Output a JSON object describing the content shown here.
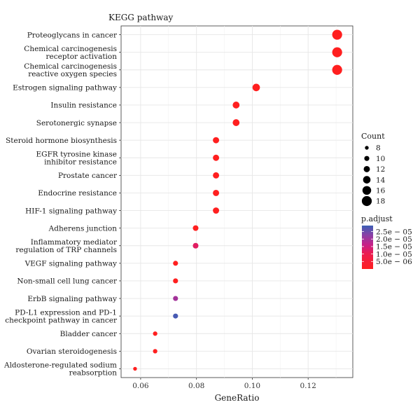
{
  "chart_data": {
    "type": "scatter",
    "title": "KEGG pathway",
    "xlabel": "GeneRatio",
    "ylabel": "",
    "xlim": [
      0.053,
      0.136
    ],
    "xticks": [
      0.06,
      0.08,
      0.1,
      0.12
    ],
    "xtick_labels": [
      "0.06",
      "0.08",
      "0.10",
      "0.12"
    ],
    "grid": true,
    "categories": [
      "Proteoglycans in cancer",
      "Chemical carcinogenesis\nreceptor activation",
      "Chemical carcinogenesis\nreactive oxygen species",
      "Estrogen signaling pathway",
      "Insulin resistance",
      "Serotonergic synapse",
      "Steroid hormone biosynthesis",
      "EGFR tyrosine kinase\ninhibitor resistance",
      "Prostate cancer",
      "Endocrine resistance",
      "HIF-1 signaling pathway",
      "Adherens junction",
      "Inflammatory mediator\nregulation of TRP channels",
      "VEGF signaling pathway",
      "Non-small cell lung cancer",
      "ErbB signaling pathway",
      "PD-L1 expression and PD-1\ncheckpoint pathway in cancer",
      "Bladder cancer",
      "Ovarian steroidogenesis",
      "Aldosterone-regulated sodium\nreabsorption"
    ],
    "gene_ratio": [
      0.1304,
      0.1304,
      0.1304,
      0.1014,
      0.0942,
      0.0942,
      0.087,
      0.087,
      0.087,
      0.087,
      0.087,
      0.0797,
      0.0797,
      0.0725,
      0.0725,
      0.0725,
      0.0725,
      0.0652,
      0.0652,
      0.058
    ],
    "count": [
      18,
      18,
      18,
      14,
      13,
      13,
      12,
      12,
      12,
      12,
      12,
      11,
      11,
      10,
      10,
      10,
      10,
      9,
      9,
      8
    ],
    "p_adjust": [
      1e-09,
      1e-09,
      1e-09,
      1e-09,
      1e-09,
      1e-09,
      1e-09,
      1e-09,
      1e-09,
      1e-09,
      1e-09,
      1e-07,
      1.2e-05,
      1e-09,
      1e-09,
      2e-05,
      2.8e-05,
      1e-09,
      1e-09,
      1e-09
    ],
    "size_legend": {
      "title": "Count",
      "values": [
        8,
        10,
        12,
        14,
        16,
        18
      ],
      "labels": [
        "8",
        "10",
        "12",
        "14",
        "16",
        "18"
      ]
    },
    "color_legend": {
      "title": "p.adjust",
      "ticks": [
        2.5e-05,
        2e-05,
        1.5e-05,
        1e-05,
        5e-06
      ],
      "labels": [
        "2.5e − 05",
        "2.0e − 05",
        "1.5e − 05",
        "1.0e − 05",
        "5.0e − 06"
      ],
      "range": [
        0,
        2.9e-05
      ],
      "low_color": "#ff1f1f",
      "high_color": "#3b5fb5"
    }
  }
}
